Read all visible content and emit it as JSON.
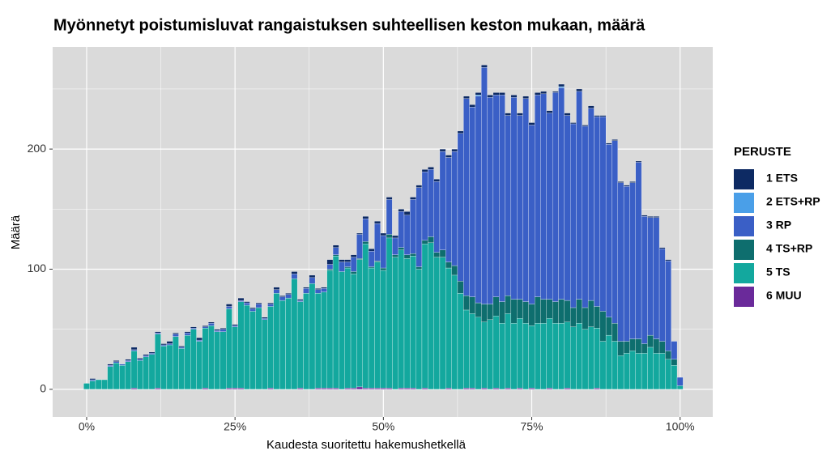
{
  "chart_data": {
    "type": "histogram",
    "title": "Myönnetyt poistumisluvat rangaistuksen suhteellisen keston mukaan, määrä",
    "x_label": "Kaudesta suoritettu hakemushetkellä",
    "y_label": "Määrä",
    "legend_title": "PERUSTE",
    "legend_position": "right",
    "grid": true,
    "stacked": true,
    "bins": [
      -0.5,
      0.5,
      1.5,
      2.5,
      3.5,
      4.5,
      5.5,
      6.5,
      7.5,
      8.5,
      9.5,
      10.5,
      11.5,
      12.5,
      13.5,
      14.5,
      15.5,
      16.5,
      17.5,
      18.5,
      19.5,
      20.5,
      21.5,
      22.5,
      23.5,
      24.5,
      25.5,
      26.5,
      27.5,
      28.5,
      29.5,
      30.5,
      31.5,
      32.5,
      33.5,
      34.5,
      35.5,
      36.5,
      37.5,
      38.5,
      39.5,
      40.5,
      41.5,
      42.5,
      43.5,
      44.5,
      45.5,
      46.5,
      47.5,
      48.5,
      49.5,
      50.5,
      51.5,
      52.5,
      53.5,
      54.5,
      55.5,
      56.5,
      57.5,
      58.5,
      59.5,
      60.5,
      61.5,
      62.5,
      63.5,
      64.5,
      65.5,
      66.5,
      67.5,
      68.5,
      69.5,
      70.5,
      71.5,
      72.5,
      73.5,
      74.5,
      75.5,
      76.5,
      77.5,
      78.5,
      79.5,
      80.5,
      81.5,
      82.5,
      83.5,
      84.5,
      85.5,
      86.5,
      87.5,
      88.5,
      89.5,
      90.5,
      91.5,
      92.5,
      93.5,
      94.5,
      95.5,
      96.5,
      97.5,
      98.5,
      99.5,
      100.5
    ],
    "xlim": [
      -5.73,
      105.5
    ],
    "xticks": [
      {
        "value": 0,
        "label": "0%"
      },
      {
        "value": 25,
        "label": "25%"
      },
      {
        "value": 50,
        "label": "50%"
      },
      {
        "value": 75,
        "label": "75%"
      },
      {
        "value": 100,
        "label": "100%"
      }
    ],
    "ylim": [
      -23,
      285
    ],
    "yticks": [
      0,
      100,
      200
    ],
    "series": [
      {
        "name": "1 ETS",
        "color": "#0d2a63",
        "values": [
          0,
          1,
          0,
          0,
          1,
          1,
          0,
          1,
          2,
          1,
          1,
          1,
          1,
          1,
          2,
          1,
          1,
          1,
          1,
          2,
          1,
          1,
          1,
          1,
          2,
          1,
          2,
          1,
          1,
          1,
          1,
          1,
          2,
          1,
          1,
          2,
          1,
          1,
          2,
          1,
          1,
          4,
          2,
          2,
          2,
          2,
          1,
          2,
          2,
          2,
          2,
          2,
          2,
          2,
          3,
          2,
          2,
          2,
          2,
          2,
          2,
          2,
          2,
          2,
          2,
          2,
          2,
          2,
          2,
          2,
          2,
          2,
          2,
          2,
          2,
          2,
          2,
          2,
          2,
          1,
          2,
          2,
          1,
          2,
          1,
          2,
          1,
          1,
          1,
          1,
          1,
          1,
          1,
          1,
          1,
          1,
          1,
          1,
          1,
          0,
          0
        ]
      },
      {
        "name": "2 ETS+RP",
        "color": "#4a9fe8",
        "values": [
          0,
          0,
          0,
          0,
          0,
          0,
          0,
          0,
          0,
          0,
          0,
          0,
          0,
          0,
          0,
          0,
          0,
          0,
          0,
          0,
          0,
          0,
          0,
          0,
          0,
          0,
          0,
          0,
          0,
          0,
          0,
          0,
          0,
          0,
          0,
          0,
          0,
          0,
          0,
          0,
          0,
          0,
          0,
          0,
          0,
          0,
          0,
          0,
          0,
          0,
          0,
          0,
          0,
          0,
          0,
          0,
          0,
          0,
          0,
          0,
          0,
          0,
          0,
          0,
          0,
          0,
          1,
          0,
          0,
          0,
          0,
          0,
          0,
          0,
          0,
          0,
          0,
          0,
          0,
          0,
          1,
          0,
          0,
          0,
          0,
          0,
          0,
          0,
          0,
          0,
          0,
          0,
          0,
          0,
          0,
          0,
          0,
          0,
          0,
          0,
          0
        ]
      },
      {
        "name": "3 RP",
        "color": "#3a5fc6",
        "values": [
          0,
          1,
          0,
          0,
          1,
          1,
          1,
          1,
          1,
          1,
          1,
          1,
          1,
          1,
          1,
          2,
          1,
          2,
          1,
          1,
          1,
          2,
          1,
          2,
          2,
          1,
          1,
          2,
          2,
          3,
          1,
          2,
          3,
          3,
          3,
          4,
          1,
          4,
          5,
          3,
          3,
          4,
          6,
          8,
          4,
          12,
          20,
          19,
          13,
          31,
          27,
          29,
          14,
          30,
          33,
          45,
          66,
          57,
          56,
          59,
          82,
          87,
          95,
          123,
          164,
          158,
          172,
          197,
          172,
          168,
          172,
          150,
          168,
          153,
          169,
          149,
          168,
          171,
          155,
          174,
          176,
          154,
          153,
          173,
          151,
          160,
          158,
          162,
          144,
          152,
          132,
          129,
          130,
          147,
          106,
          98,
          101,
          77,
          75,
          15,
          7
        ]
      },
      {
        "name": "4 TS+RP",
        "color": "#0e6e6e",
        "values": [
          0,
          0,
          0,
          0,
          0,
          0,
          0,
          0,
          0,
          0,
          0,
          0,
          0,
          0,
          0,
          0,
          0,
          0,
          0,
          0,
          0,
          0,
          0,
          0,
          0,
          0,
          0,
          0,
          0,
          0,
          0,
          0,
          0,
          0,
          0,
          0,
          0,
          0,
          0,
          0,
          0,
          1,
          1,
          0,
          1,
          2,
          1,
          2,
          1,
          1,
          2,
          3,
          2,
          2,
          3,
          2,
          2,
          3,
          5,
          4,
          6,
          5,
          8,
          10,
          12,
          14,
          12,
          15,
          13,
          16,
          18,
          15,
          20,
          16,
          18,
          18,
          22,
          20,
          16,
          18,
          20,
          18,
          16,
          20,
          18,
          22,
          18,
          25,
          15,
          15,
          12,
          10,
          10,
          12,
          8,
          10,
          12,
          10,
          7,
          5,
          0
        ]
      },
      {
        "name": "5 TS",
        "color": "#13a89e",
        "values": [
          5,
          7,
          8,
          8,
          19,
          22,
          20,
          23,
          31,
          24,
          27,
          29,
          45,
          36,
          37,
          44,
          34,
          45,
          50,
          40,
          50,
          53,
          48,
          48,
          66,
          51,
          72,
          70,
          65,
          68,
          58,
          68,
          80,
          74,
          76,
          92,
          72,
          80,
          88,
          79,
          80,
          98,
          110,
          98,
          100,
          95,
          106,
          120,
          100,
          105,
          98,
          125,
          110,
          115,
          108,
          110,
          100,
          120,
          122,
          110,
          110,
          100,
          95,
          80,
          65,
          62,
          60,
          55,
          58,
          60,
          55,
          62,
          55,
          58,
          55,
          52,
          55,
          55,
          58,
          55,
          55,
          55,
          52,
          55,
          50,
          52,
          50,
          40,
          45,
          40,
          28,
          30,
          32,
          30,
          30,
          35,
          30,
          30,
          25,
          20,
          3
        ]
      },
      {
        "name": "6 MUU",
        "color": "#6a2a9a",
        "values": [
          0,
          0,
          0,
          0,
          0,
          0,
          0,
          0,
          1,
          0,
          0,
          0,
          1,
          0,
          0,
          0,
          0,
          0,
          0,
          0,
          1,
          0,
          0,
          0,
          1,
          1,
          1,
          0,
          0,
          0,
          0,
          1,
          0,
          0,
          0,
          0,
          1,
          0,
          0,
          1,
          1,
          1,
          1,
          0,
          1,
          1,
          2,
          1,
          1,
          1,
          1,
          1,
          0,
          1,
          1,
          1,
          0,
          1,
          0,
          0,
          0,
          1,
          0,
          0,
          1,
          1,
          0,
          1,
          0,
          1,
          0,
          1,
          0,
          1,
          0,
          1,
          0,
          0,
          1,
          0,
          0,
          1,
          0,
          0,
          0,
          0,
          1,
          0,
          0,
          0,
          0,
          0,
          0,
          0,
          0,
          0,
          0,
          0,
          0,
          0,
          0
        ]
      }
    ]
  }
}
